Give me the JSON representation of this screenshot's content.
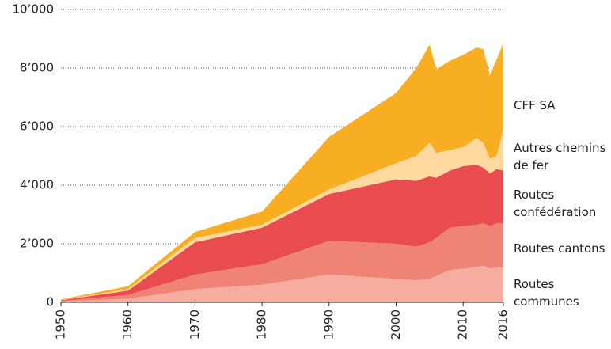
{
  "chart_data": {
    "type": "stacked-area",
    "x": [
      1950,
      1960,
      1970,
      1980,
      1990,
      2000,
      2003,
      2005,
      2006,
      2008,
      2010,
      2012,
      2013,
      2014,
      2015,
      2016
    ],
    "series": [
      {
        "name": "Routes communes",
        "color": "#f6ada0",
        "values": [
          30,
          120,
          450,
          600,
          950,
          800,
          750,
          800,
          900,
          1100,
          1150,
          1200,
          1250,
          1150,
          1200,
          1200
        ]
      },
      {
        "name": "Routes cantons",
        "color": "#ef8376",
        "values": [
          20,
          130,
          500,
          700,
          1150,
          1200,
          1150,
          1250,
          1300,
          1450,
          1450,
          1450,
          1450,
          1450,
          1500,
          1500
        ]
      },
      {
        "name": "Routes confédération",
        "color": "#e84c4f",
        "values": [
          20,
          150,
          1100,
          1250,
          1600,
          2200,
          2250,
          2250,
          2050,
          1950,
          2050,
          2050,
          1900,
          1800,
          1850,
          1800
        ]
      },
      {
        "name": "Autres chemins de fer",
        "color": "#fdd9a0",
        "values": [
          10,
          50,
          150,
          100,
          150,
          550,
          850,
          1150,
          850,
          700,
          650,
          900,
          850,
          500,
          450,
          1400
        ]
      },
      {
        "name": "CFF SA",
        "color": "#f7ae23",
        "values": [
          20,
          100,
          200,
          450,
          1800,
          2400,
          3000,
          3350,
          2850,
          3050,
          3150,
          3100,
          3200,
          2850,
          3300,
          2950
        ]
      }
    ],
    "xlim": [
      1950,
      2016
    ],
    "xticks": [
      1950,
      1960,
      1970,
      1980,
      1990,
      2000,
      2010,
      2016
    ],
    "ylim": [
      0,
      10000
    ],
    "yticks": [
      {
        "value": 0,
        "label": "0"
      },
      {
        "value": 2000,
        "label": "2’000"
      },
      {
        "value": 4000,
        "label": "4’000"
      },
      {
        "value": 6000,
        "label": "6’000"
      },
      {
        "value": 8000,
        "label": "8’000"
      },
      {
        "value": 10000,
        "label": "10’000"
      }
    ],
    "grid": true
  }
}
